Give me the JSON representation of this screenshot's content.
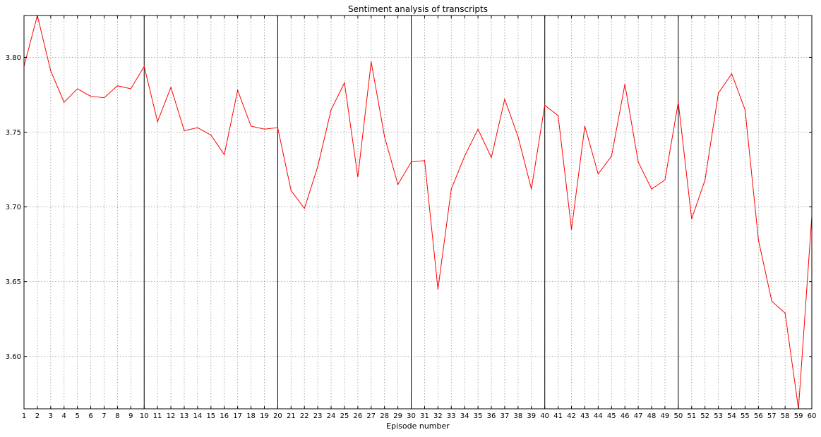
{
  "chart_data": {
    "type": "line",
    "title": "Sentiment analysis of transcripts",
    "xlabel": "Episode number",
    "ylabel": "",
    "xlim": [
      1,
      60
    ],
    "ylim": [
      3.565,
      3.828
    ],
    "x_ticks": [
      1,
      2,
      3,
      4,
      5,
      6,
      7,
      8,
      9,
      10,
      11,
      12,
      13,
      14,
      15,
      16,
      17,
      18,
      19,
      20,
      21,
      22,
      23,
      24,
      25,
      26,
      27,
      28,
      29,
      30,
      31,
      32,
      33,
      34,
      35,
      36,
      37,
      38,
      39,
      40,
      41,
      42,
      43,
      44,
      45,
      46,
      47,
      48,
      49,
      50,
      51,
      52,
      53,
      54,
      55,
      56,
      57,
      58,
      59,
      60
    ],
    "y_ticks": [
      "3.60",
      "3.65",
      "3.70",
      "3.75",
      "3.80"
    ],
    "grid": true,
    "grid_style": "dotted",
    "vertical_markers": [
      10,
      20,
      30,
      40,
      50
    ],
    "series": [
      {
        "color": "#ff0000",
        "x": [
          1,
          2,
          3,
          4,
          5,
          6,
          7,
          8,
          9,
          10,
          11,
          12,
          13,
          14,
          15,
          16,
          17,
          18,
          19,
          20,
          21,
          22,
          23,
          24,
          25,
          26,
          27,
          28,
          29,
          30,
          31,
          32,
          33,
          34,
          35,
          36,
          37,
          38,
          39,
          40,
          41,
          42,
          43,
          44,
          45,
          46,
          47,
          48,
          49,
          50,
          51,
          52,
          53,
          54,
          55,
          56,
          57,
          58,
          59,
          60
        ],
        "values": [
          3.794,
          3.828,
          3.791,
          3.77,
          3.779,
          3.774,
          3.773,
          3.781,
          3.779,
          3.794,
          3.757,
          3.78,
          3.751,
          3.753,
          3.748,
          3.735,
          3.778,
          3.754,
          3.752,
          3.753,
          3.711,
          3.699,
          3.727,
          3.765,
          3.783,
          3.72,
          3.797,
          3.747,
          3.715,
          3.73,
          3.731,
          3.645,
          3.712,
          3.734,
          3.752,
          3.733,
          3.772,
          3.747,
          3.712,
          3.768,
          3.761,
          3.685,
          3.754,
          3.722,
          3.734,
          3.782,
          3.73,
          3.712,
          3.718,
          3.77,
          3.692,
          3.718,
          3.776,
          3.789,
          3.765,
          3.678,
          3.637,
          3.629,
          3.565,
          3.694
        ]
      }
    ]
  }
}
